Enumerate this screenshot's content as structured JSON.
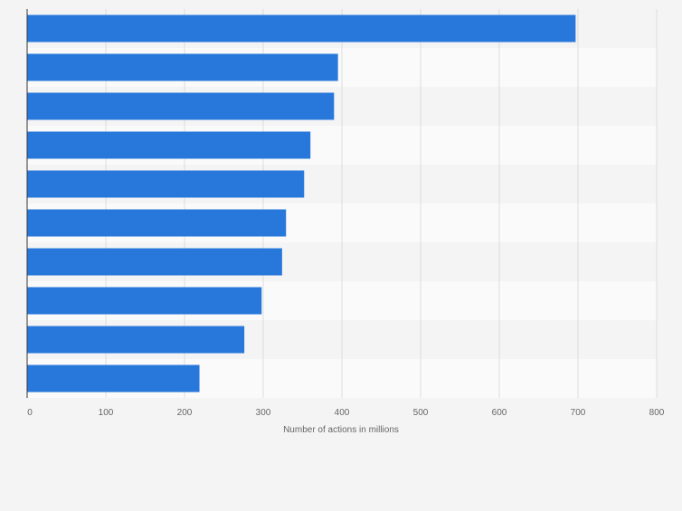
{
  "chart_data": {
    "type": "bar",
    "orientation": "horizontal",
    "categories": [
      "",
      "",
      "",
      "",
      "",
      "",
      "",
      "",
      "",
      ""
    ],
    "values": [
      697,
      395,
      390,
      360,
      352,
      329,
      324,
      298,
      276,
      219
    ],
    "title": "",
    "xlabel": "Number of actions in millions",
    "ylabel": "",
    "xlim": [
      0,
      800
    ],
    "xticks": [
      0,
      100,
      200,
      300,
      400,
      500,
      600,
      700,
      800
    ],
    "grid": true,
    "bar_color": "#2878dc",
    "band_colors": [
      "#f4f4f4",
      "#fafafa"
    ]
  }
}
